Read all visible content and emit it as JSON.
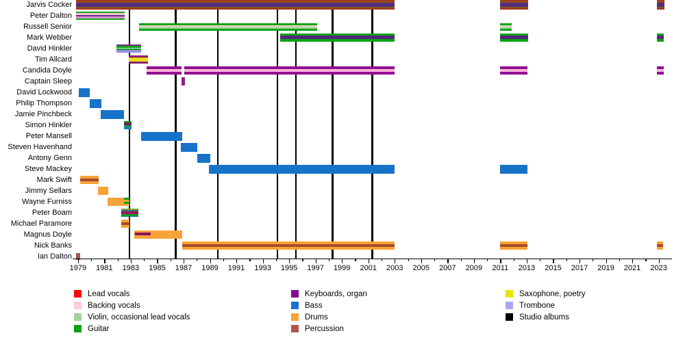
{
  "chart_data": {
    "type": "bar",
    "subtype": "band-membership-timeline-gantt",
    "title": "",
    "x_axis": {
      "min": 1978.8,
      "max": 2023.8,
      "tick_years": [
        1979,
        1981,
        1983,
        1985,
        1987,
        1989,
        1991,
        1993,
        1995,
        1997,
        1999,
        2001,
        2003,
        2005,
        2007,
        2009,
        2011,
        2013,
        2015,
        2017,
        2019,
        2021,
        2023
      ],
      "minor_tick_step": 1,
      "grid": false
    },
    "album_lines": [
      1982.9,
      1986.4,
      1989.6,
      1994.1,
      1995.5,
      1998.3,
      2001.3
    ],
    "stripe_sets": {
      "jarvis": {
        "h": 14,
        "stripes": [
          [
            "#a03b1d",
            3
          ],
          [
            "#6f6c1e",
            1
          ],
          [
            "#5a2a80",
            5
          ],
          [
            "#6f6c1e",
            1
          ],
          [
            "#a03b1d",
            3
          ]
        ]
      },
      "dalton": {
        "h": 12,
        "stripes": [
          [
            "#14a314",
            2
          ],
          [
            "#f4c9d4",
            2
          ],
          [
            "#6a2a86",
            2
          ],
          [
            "#d893ce",
            2
          ],
          [
            "#14a314",
            2
          ]
        ]
      },
      "senior": {
        "h": 11,
        "stripes": [
          [
            "#0ba313",
            3
          ],
          [
            "#ecd5c9",
            2
          ],
          [
            "#abd3a4",
            3
          ],
          [
            "#0ba313",
            3
          ]
        ]
      },
      "webber": {
        "h": 12,
        "stripes": [
          [
            "#0ba313",
            3
          ],
          [
            "#54267c",
            4
          ],
          [
            "#0ba313",
            4
          ]
        ]
      },
      "dhinkler": {
        "h": 12,
        "stripes": [
          [
            "#7b2b8b",
            2
          ],
          [
            "#0ba313",
            2
          ],
          [
            "#d5e6ee",
            1
          ],
          [
            "#0ba313",
            2
          ],
          [
            "#968ee2",
            3
          ]
        ]
      },
      "allcard": {
        "h": 12,
        "stripes": [
          [
            "#8e2170",
            3
          ],
          [
            "#eda413",
            1
          ],
          [
            "#e6e019",
            4
          ],
          [
            "#8e2170",
            3
          ]
        ]
      },
      "candida": {
        "h": 12,
        "stripes": [
          [
            "#930e93",
            3
          ],
          [
            "#f6b6d9",
            4
          ],
          [
            "#930e93",
            3
          ]
        ]
      },
      "keys": {
        "h": 12,
        "stripes": [
          [
            "#8c2283",
            1
          ]
        ]
      },
      "bass": {
        "h": 13,
        "stripes": [
          [
            "#1673c9",
            1
          ]
        ]
      },
      "drums": {
        "h": 12,
        "stripes": [
          [
            "#f6a338",
            1
          ]
        ]
      },
      "drumperc": {
        "h": 12,
        "stripes": [
          [
            "#f6a338",
            3
          ],
          [
            "#a8492c",
            3
          ],
          [
            "#f6a338",
            3
          ]
        ]
      },
      "perc": {
        "h": 10,
        "stripes": [
          [
            "#a5544e",
            1
          ]
        ]
      },
      "shinkler": {
        "h": 12,
        "stripes": [
          [
            "#0ba313",
            2
          ],
          [
            "#6d2360",
            3
          ],
          [
            "#0ba313",
            2
          ],
          [
            "#1b84b4",
            3
          ]
        ]
      },
      "boam": {
        "h": 13,
        "stripes": [
          [
            "#9a9a28",
            2
          ],
          [
            "#17807a",
            2
          ],
          [
            "#a5105a",
            3
          ],
          [
            "#0ba313",
            2
          ],
          [
            "#17807a",
            2
          ]
        ]
      },
      "furniss2": {
        "h": 12,
        "stripes": [
          [
            "#0ba313",
            2
          ],
          [
            "#f6a338",
            2
          ],
          [
            "#0ba313",
            2
          ],
          [
            "#f6a338",
            2
          ]
        ]
      }
    },
    "rows": [
      {
        "name": "Jarvis Cocker",
        "bars": [
          {
            "start": 1978.85,
            "end": 2003.0,
            "set": "jarvis"
          },
          {
            "start": 2011.0,
            "end": 2013.1,
            "set": "jarvis"
          },
          {
            "start": 2022.85,
            "end": 2023.45,
            "set": "jarvis"
          }
        ]
      },
      {
        "name": "Peter Dalton",
        "bars": [
          {
            "start": 1978.85,
            "end": 1982.55,
            "set": "dalton"
          }
        ]
      },
      {
        "name": "Russell Senior",
        "bars": [
          {
            "start": 1983.65,
            "end": 1997.1,
            "set": "senior"
          },
          {
            "start": 2011.0,
            "end": 2011.85,
            "set": "senior"
          }
        ]
      },
      {
        "name": "Mark Webber",
        "bars": [
          {
            "start": 1994.3,
            "end": 2003.0,
            "set": "webber"
          },
          {
            "start": 2011.0,
            "end": 2013.1,
            "set": "webber"
          },
          {
            "start": 2022.85,
            "end": 2023.4,
            "set": "webber"
          }
        ]
      },
      {
        "name": "David Hinkler",
        "bars": [
          {
            "start": 1981.9,
            "end": 1983.8,
            "set": "dhinkler"
          }
        ]
      },
      {
        "name": "Tim Allcard",
        "bars": [
          {
            "start": 1982.85,
            "end": 1984.3,
            "set": "allcard"
          }
        ]
      },
      {
        "name": "Candida Doyle",
        "bars": [
          {
            "start": 1984.2,
            "end": 1986.85,
            "set": "candida"
          },
          {
            "start": 1987.05,
            "end": 2003.0,
            "set": "candida"
          },
          {
            "start": 2011.0,
            "end": 2013.05,
            "set": "candida"
          },
          {
            "start": 2022.85,
            "end": 2023.4,
            "set": "candida"
          }
        ]
      },
      {
        "name": "Captain Sleep",
        "bars": [
          {
            "start": 1986.85,
            "end": 1987.1,
            "set": "keys"
          }
        ]
      },
      {
        "name": "David Lockwood",
        "bars": [
          {
            "start": 1979.05,
            "end": 1979.9,
            "set": "bass"
          }
        ]
      },
      {
        "name": "Philip Thompson",
        "bars": [
          {
            "start": 1979.9,
            "end": 1980.75,
            "set": "bass"
          }
        ]
      },
      {
        "name": "Jamie Pinchbeck",
        "bars": [
          {
            "start": 1980.7,
            "end": 1982.5,
            "set": "bass"
          }
        ]
      },
      {
        "name": "Simon Hinkler",
        "bars": [
          {
            "start": 1982.5,
            "end": 1983.05,
            "set": "shinkler"
          }
        ]
      },
      {
        "name": "Peter Mansell",
        "bars": [
          {
            "start": 1983.8,
            "end": 1986.9,
            "set": "bass"
          }
        ]
      },
      {
        "name": "Steven Havenhand",
        "bars": [
          {
            "start": 1986.8,
            "end": 1988.05,
            "set": "bass"
          }
        ]
      },
      {
        "name": "Antony Genn",
        "bars": [
          {
            "start": 1988.05,
            "end": 1989.0,
            "set": "bass"
          }
        ]
      },
      {
        "name": "Steve Mackey",
        "bars": [
          {
            "start": 1988.9,
            "end": 2003.0,
            "set": "bass"
          },
          {
            "start": 2011.0,
            "end": 2013.05,
            "set": "bass"
          }
        ]
      },
      {
        "name": "Mark Swift",
        "bars": [
          {
            "start": 1979.15,
            "end": 1980.55,
            "set": "drumperc"
          }
        ]
      },
      {
        "name": "Jimmy Sellars",
        "bars": [
          {
            "start": 1980.5,
            "end": 1981.3,
            "set": "drums"
          }
        ]
      },
      {
        "name": "Wayne Furniss",
        "bars": [
          {
            "start": 1981.25,
            "end": 1982.6,
            "set": "drums"
          },
          {
            "start": 1982.5,
            "end": 1982.9,
            "set": "furniss2"
          }
        ]
      },
      {
        "name": "Peter Boam",
        "bars": [
          {
            "start": 1982.3,
            "end": 1983.6,
            "set": "boam"
          }
        ]
      },
      {
        "name": "Michael Paramore",
        "bars": [
          {
            "start": 1982.3,
            "end": 1982.9,
            "set": "drumperc"
          }
        ]
      },
      {
        "name": "Magnus Doyle",
        "bars": [
          {
            "start": 1983.25,
            "end": 1986.9,
            "set": "drums",
            "overlay": {
              "start": 1983.3,
              "end": 1984.5,
              "color": "#8e1060",
              "top": 0.22,
              "height": 0.34
            }
          }
        ]
      },
      {
        "name": "Nick Banks",
        "bars": [
          {
            "start": 1986.9,
            "end": 2003.0,
            "set": "drumperc"
          },
          {
            "start": 2011.0,
            "end": 2013.05,
            "set": "drumperc"
          },
          {
            "start": 2022.85,
            "end": 2023.35,
            "set": "drumperc"
          }
        ]
      },
      {
        "name": "Ian Dalton",
        "bars": [
          {
            "start": 1978.85,
            "end": 1979.15,
            "set": "perc"
          }
        ]
      }
    ],
    "legend_position": "bottom",
    "legend_columns": [
      [
        {
          "label": "Lead vocals",
          "color": "#f80a0a"
        },
        {
          "label": "Backing vocals",
          "color": "#fbcdd6"
        },
        {
          "label": "Violin, occasional lead vocals",
          "color": "#a4cf9e"
        },
        {
          "label": "Guitar",
          "color": "#0ba313"
        }
      ],
      [
        {
          "label": "Keyboards, organ",
          "color": "#850b8c"
        },
        {
          "label": "Bass",
          "color": "#1673c9"
        },
        {
          "label": "Drums",
          "color": "#f6a338"
        },
        {
          "label": "Percussion",
          "color": "#b2554f"
        }
      ],
      [
        {
          "label": "Saxophone, poetry",
          "color": "#e4e80c"
        },
        {
          "label": "Trombone",
          "color": "#a7a7f0"
        },
        {
          "label": "Studio albums",
          "color": "#000000"
        }
      ]
    ]
  },
  "layout_colors": {
    "background": "#ffffff",
    "axis": "#000000",
    "album_line": "#000000"
  }
}
